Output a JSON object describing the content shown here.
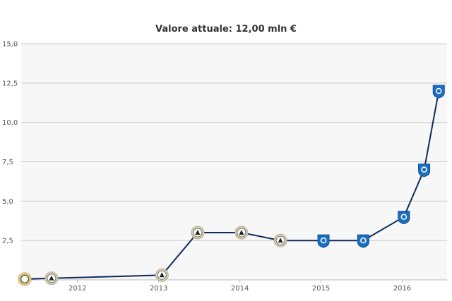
{
  "chart_data": {
    "type": "line",
    "title": "Valore attuale: 12,00 mln €",
    "y_ticks": [
      "15,0",
      "12,5",
      "10,0",
      "7,5",
      "5,0",
      "2,5"
    ],
    "x_ticks": [
      "2012",
      "2013",
      "2014",
      "2015",
      "2016"
    ],
    "ylim": [
      0,
      15
    ],
    "xlim": [
      2011.35,
      2016.5
    ],
    "grid": true,
    "series": [
      {
        "values": [
          {
            "x": 2011.35,
            "y": 0.05,
            "club": "club-1"
          },
          {
            "x": 2011.68,
            "y": 0.1,
            "club": "udinese"
          },
          {
            "x": 2013.04,
            "y": 0.3,
            "club": "udinese"
          },
          {
            "x": 2013.48,
            "y": 3.0,
            "club": "udinese"
          },
          {
            "x": 2014.02,
            "y": 3.0,
            "club": "udinese"
          },
          {
            "x": 2014.5,
            "y": 2.5,
            "club": "udinese"
          },
          {
            "x": 2015.03,
            "y": 2.5,
            "club": "empoli"
          },
          {
            "x": 2015.52,
            "y": 2.5,
            "club": "empoli"
          },
          {
            "x": 2016.02,
            "y": 4.0,
            "club": "empoli"
          },
          {
            "x": 2016.27,
            "y": 7.0,
            "club": "empoli"
          },
          {
            "x": 2016.45,
            "y": 12.0,
            "club": "empoli"
          }
        ]
      }
    ],
    "colors": {
      "line": "#0e2a5c",
      "grid": "#c8c8c8",
      "plot_bg": "#f7f7f7",
      "empoli": "#1a6fbf",
      "udinese": "#d7d0b0",
      "club-1": "#f1c18a"
    }
  }
}
